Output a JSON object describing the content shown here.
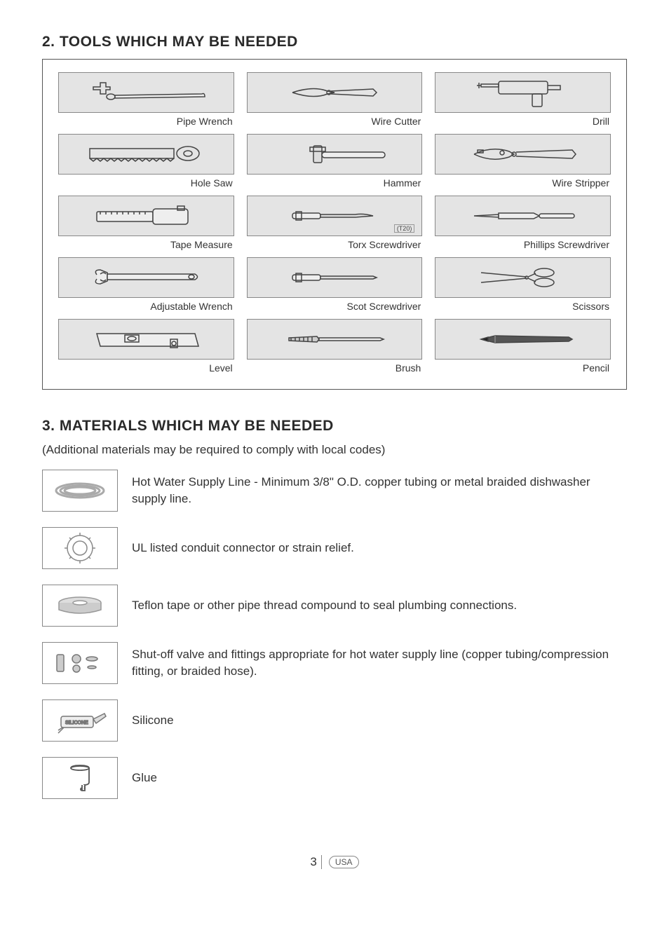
{
  "section2": {
    "heading": "2. TOOLS WHICH MAY BE NEEDED",
    "tools": [
      {
        "label": "Pipe Wrench",
        "icon": "pipe-wrench"
      },
      {
        "label": "Wire Cutter",
        "icon": "wire-cutter"
      },
      {
        "label": "Drill",
        "icon": "drill"
      },
      {
        "label": "Hole Saw",
        "icon": "hole-saw"
      },
      {
        "label": "Hammer",
        "icon": "hammer"
      },
      {
        "label": "Wire Stripper",
        "icon": "wire-stripper"
      },
      {
        "label": "Tape Measure",
        "icon": "tape-measure"
      },
      {
        "label": "Torx Screwdriver",
        "icon": "torx-screwdriver",
        "note": "(T20)"
      },
      {
        "label": "Phillips Screwdriver",
        "icon": "phillips-screwdriver"
      },
      {
        "label": "Adjustable Wrench",
        "icon": "adjustable-wrench"
      },
      {
        "label": "Scot Screwdriver",
        "icon": "scot-screwdriver"
      },
      {
        "label": "Scissors",
        "icon": "scissors"
      },
      {
        "label": "Level",
        "icon": "level"
      },
      {
        "label": "Brush",
        "icon": "brush"
      },
      {
        "label": "Pencil",
        "icon": "pencil"
      }
    ],
    "grid_cols": 3,
    "grid_rows": 5
  },
  "section3": {
    "heading": "3. MATERIALS WHICH MAY BE NEEDED",
    "subheading": "(Additional materials may be required to comply with local codes)",
    "materials": [
      {
        "icon": "coil",
        "text": "Hot Water Supply Line - Minimum 3/8\" O.D. copper tubing or metal braided dishwasher supply line."
      },
      {
        "icon": "connector",
        "text": "UL listed conduit connector or strain relief."
      },
      {
        "icon": "tape-roll",
        "text": "Teflon tape or other pipe thread compound to seal plumbing connections."
      },
      {
        "icon": "fittings",
        "text": "Shut-off valve and fittings appropriate for hot water supply line (copper tubing/compression fitting, or braided hose)."
      },
      {
        "icon": "silicone-tube",
        "text": "Silicone"
      },
      {
        "icon": "glue",
        "text": "Glue"
      }
    ]
  },
  "footer": {
    "page": "3",
    "region": "USA"
  },
  "style": {
    "page_bg": "#ffffff",
    "text_color": "#2a2a2a",
    "border_color": "#555555",
    "tool_box_bg": "#e4e4e4",
    "tool_border": "#888888",
    "heading_fontsize": 21,
    "body_fontsize": 17,
    "tool_label_fontsize": 14
  }
}
